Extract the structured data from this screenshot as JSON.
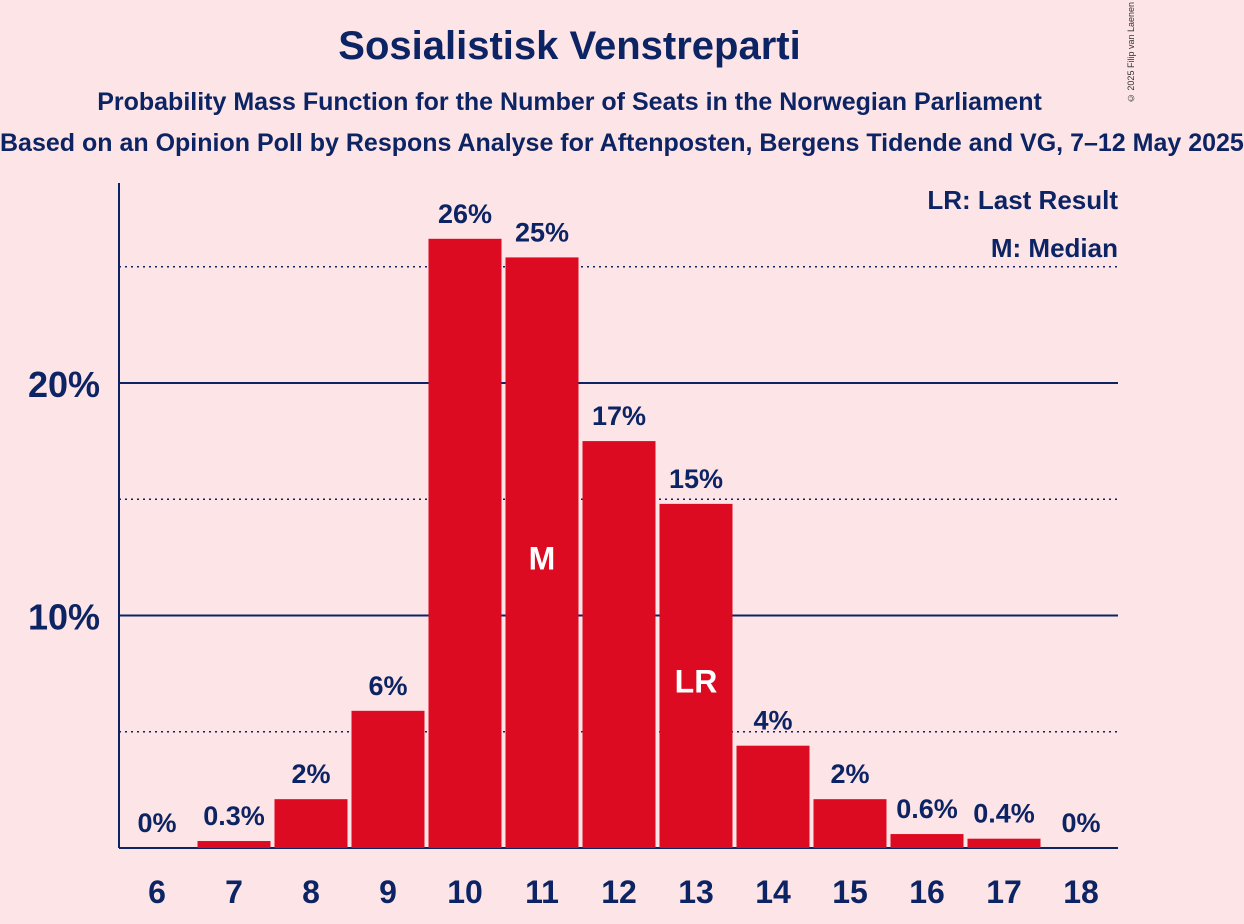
{
  "title": "Sosialistisk Venstreparti",
  "subtitle": "Probability Mass Function for the Number of Seats in the Norwegian Parliament",
  "source": "Based on an Opinion Poll by Respons Analyse for Aftenposten, Bergens Tidende and VG, 7–12 May 2025",
  "copyright": "© 2025 Filip van Laenen",
  "legend": {
    "lr": "LR: Last Result",
    "m": "M: Median"
  },
  "colors": {
    "background": "#fde4e6",
    "bar": "#dc0b22",
    "text": "#0c2464"
  },
  "chart_data": {
    "type": "bar",
    "categories": [
      "6",
      "7",
      "8",
      "9",
      "10",
      "11",
      "12",
      "13",
      "14",
      "15",
      "16",
      "17",
      "18"
    ],
    "values": [
      0,
      0.3,
      2.1,
      5.9,
      26.2,
      25.4,
      17.5,
      14.8,
      4.4,
      2.1,
      0.6,
      0.4,
      0
    ],
    "value_labels": [
      "0%",
      "0.3%",
      "2%",
      "6%",
      "26%",
      "25%",
      "17%",
      "15%",
      "4%",
      "2%",
      "0.6%",
      "0.4%",
      "0%"
    ],
    "bar_annotations": {
      "11": "M",
      "13": "LR"
    },
    "y_ticks": [
      {
        "value": 10,
        "label": "10%"
      },
      {
        "value": 20,
        "label": "20%"
      }
    ],
    "y_minor_gridlines": [
      5,
      15,
      25
    ],
    "ylim": [
      0,
      28.6
    ],
    "legend_position": "top-right"
  }
}
